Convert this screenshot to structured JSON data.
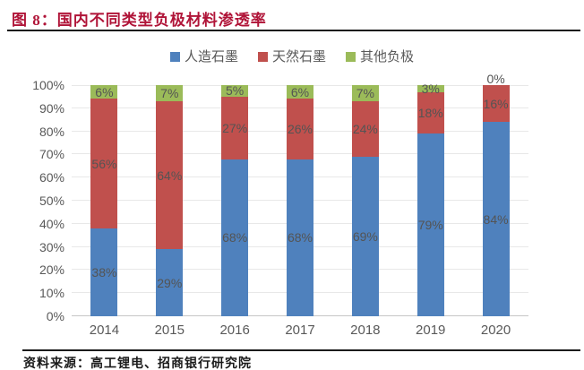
{
  "figure": {
    "title": "图 8：国内不同类型负极材料渗透率",
    "source": "资料来源：高工锂电、招商银行研究院"
  },
  "colors": {
    "title_red": "#B01438",
    "rule_dark": "#1B1B1B",
    "axis_text": "#595959",
    "data_label_text": "#545454",
    "gridline": "#E8E8E8",
    "axis_line": "#C6C6C6"
  },
  "chart_data": {
    "type": "bar",
    "stacked": true,
    "title": "国内不同类型负极材料渗透率",
    "categories": [
      "2014",
      "2015",
      "2016",
      "2017",
      "2018",
      "2019",
      "2020"
    ],
    "series": [
      {
        "name": "人造石墨",
        "color": "#4F81BD",
        "values": [
          38,
          29,
          68,
          68,
          69,
          79,
          84
        ]
      },
      {
        "name": "天然石墨",
        "color": "#C0504D",
        "values": [
          56,
          64,
          27,
          26,
          24,
          18,
          16
        ]
      },
      {
        "name": "其他负极",
        "color": "#9BBB59",
        "values": [
          6,
          7,
          5,
          6,
          7,
          3,
          0
        ]
      }
    ],
    "value_suffix": "%",
    "ylim": [
      0,
      100
    ],
    "y_tick_step": 10,
    "y_tick_labels": [
      "0%",
      "10%",
      "20%",
      "30%",
      "40%",
      "50%",
      "60%",
      "70%",
      "80%",
      "90%",
      "100%"
    ],
    "xlabel": "",
    "ylabel": "",
    "grid": true,
    "legend_position": "top",
    "data_labels": true
  }
}
